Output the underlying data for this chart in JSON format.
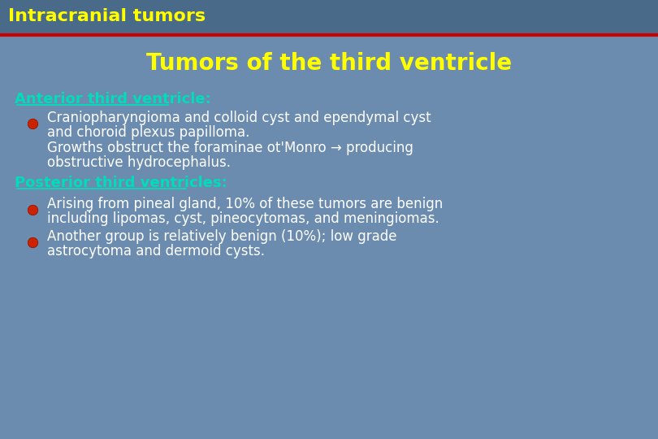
{
  "bg_color": "#6b8cae",
  "header_bg": "#4a6a8a",
  "header_text": "Intracranial tumors",
  "header_text_color": "#ffff00",
  "header_line_color": "#cc0000",
  "title": "Tumors of the third ventricle",
  "title_color": "#ffff00",
  "section1_label": "Anterior third ventricle:",
  "section1_color": "#00ddbb",
  "section2_label": "Posterior third ventricles:",
  "section2_color": "#00ddbb",
  "bullet_color": "#cc2200",
  "body_text_color": "#ffffff",
  "header_fontsize": 16,
  "title_fontsize": 20,
  "section_fontsize": 13,
  "body_fontsize": 12
}
